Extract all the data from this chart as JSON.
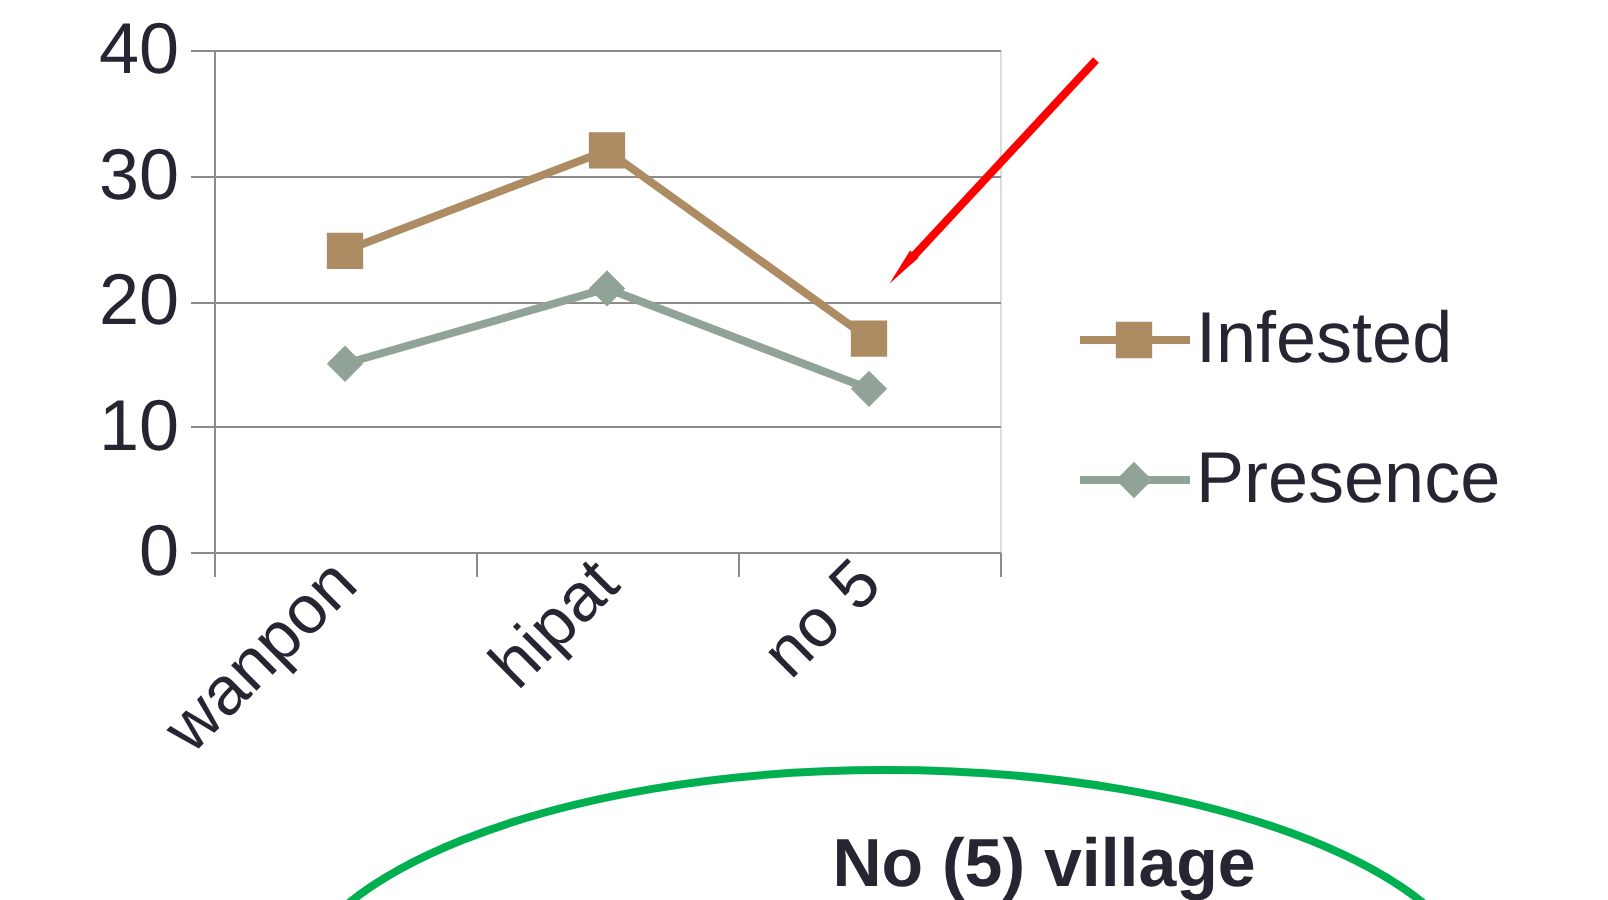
{
  "chart_data": {
    "type": "line",
    "categories": [
      "wanpon",
      "hipat",
      "no 5"
    ],
    "series": [
      {
        "name": "Infested",
        "color": "#ad8c63",
        "values": [
          24,
          32,
          17
        ],
        "marker": "square"
      },
      {
        "name": "Presence",
        "color": "#91a397",
        "values": [
          15,
          21,
          13
        ],
        "marker": "diamond"
      }
    ],
    "ylim": [
      0,
      40
    ],
    "yticks": [
      0,
      10,
      20,
      30,
      40
    ],
    "grid": "y",
    "legend": "right",
    "annotations": [
      "No (5) village"
    ]
  }
}
